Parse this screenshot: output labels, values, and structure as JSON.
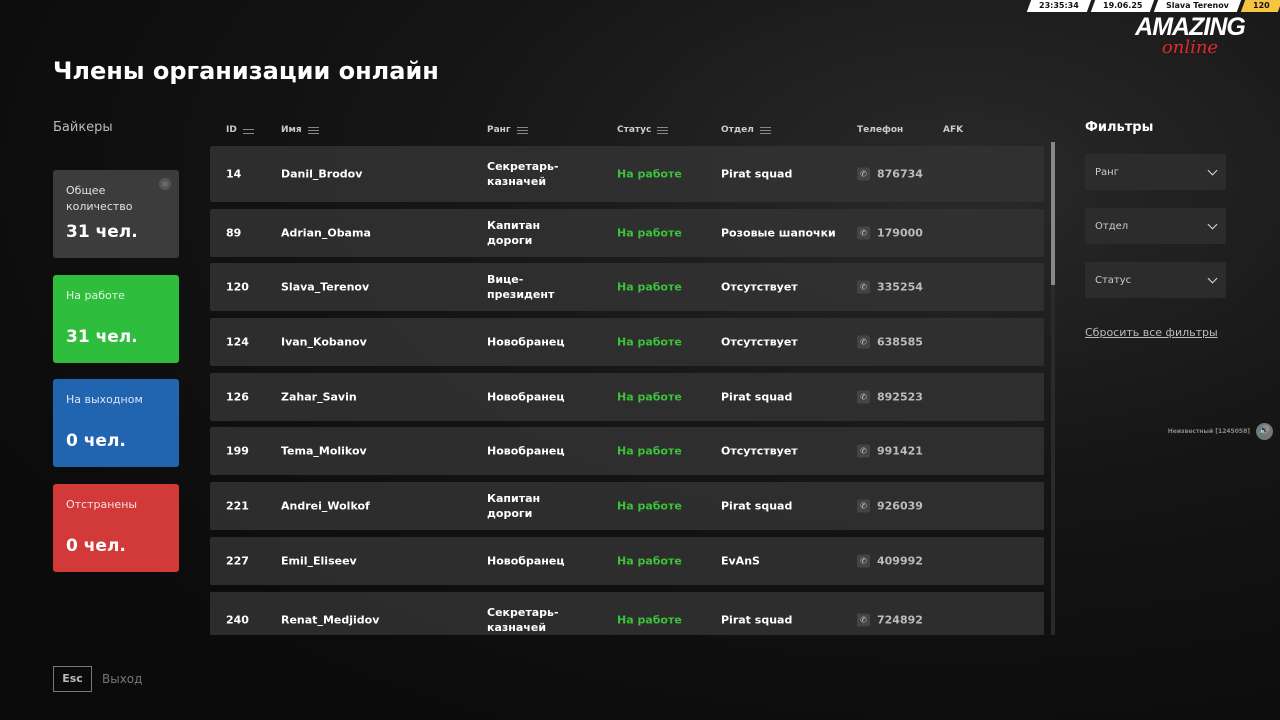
{
  "topbar": {
    "time": "23:35:34",
    "date": "19.06.25",
    "player": "Slava Terenov",
    "level": "120"
  },
  "logo": {
    "main": "AMAZING",
    "sub": "online"
  },
  "title": "Члены организации онлайн",
  "organization": "Байкеры",
  "cards": [
    {
      "label": "Общее количество",
      "value": "31 чел.",
      "color": "#3c3c3c"
    },
    {
      "label": "На работе",
      "value": "31 чел.",
      "color": "#2fbd3e"
    },
    {
      "label": "На выходном",
      "value": "0 чел.",
      "color": "#2164b0"
    },
    {
      "label": "Отстранены",
      "value": "0 чел.",
      "color": "#d23a3a"
    }
  ],
  "columns": {
    "id": "ID",
    "name": "Имя",
    "rank": "Ранг",
    "status": "Статус",
    "dept": "Отдел",
    "phone": "Телефон",
    "afk": "AFK"
  },
  "rows": [
    {
      "id": "14",
      "name": "Danil_Brodov",
      "rank": "Секретарь-казначей",
      "status": "На работе",
      "dept": "Pirat squad",
      "phone": "876734"
    },
    {
      "id": "89",
      "name": "Adrian_Obama",
      "rank": "Капитан дороги",
      "status": "На работе",
      "dept": "Розовые шапочки",
      "phone": "179000"
    },
    {
      "id": "120",
      "name": "Slava_Terenov",
      "rank": "Вице-президент",
      "status": "На работе",
      "dept": "Отсутствует",
      "phone": "335254"
    },
    {
      "id": "124",
      "name": "Ivan_Kobanov",
      "rank": "Новобранец",
      "status": "На работе",
      "dept": "Отсутствует",
      "phone": "638585"
    },
    {
      "id": "126",
      "name": "Zahar_Savin",
      "rank": "Новобранец",
      "status": "На работе",
      "dept": "Pirat squad",
      "phone": "892523"
    },
    {
      "id": "199",
      "name": "Tema_Molikov",
      "rank": "Новобранец",
      "status": "На работе",
      "dept": "Отсутствует",
      "phone": "991421"
    },
    {
      "id": "221",
      "name": "Andrei_Wolkof",
      "rank": "Капитан дороги",
      "status": "На работе",
      "dept": "Pirat squad",
      "phone": "926039"
    },
    {
      "id": "227",
      "name": "Emil_Eliseev",
      "rank": "Новобранец",
      "status": "На работе",
      "dept": "EvAnS",
      "phone": "409992"
    },
    {
      "id": "240",
      "name": "Renat_Medjidov",
      "rank": "Секретарь-казначей",
      "status": "На работе",
      "dept": "Pirat squad",
      "phone": "724892"
    }
  ],
  "filters": {
    "title": "Фильтры",
    "rank": "Ранг",
    "dept": "Отдел",
    "status": "Статус",
    "reset": "Сбросить все фильтры"
  },
  "voice": {
    "label": "Неизвестный [1245058]"
  },
  "footer": {
    "esc": "Esc",
    "exit": "Выход"
  }
}
